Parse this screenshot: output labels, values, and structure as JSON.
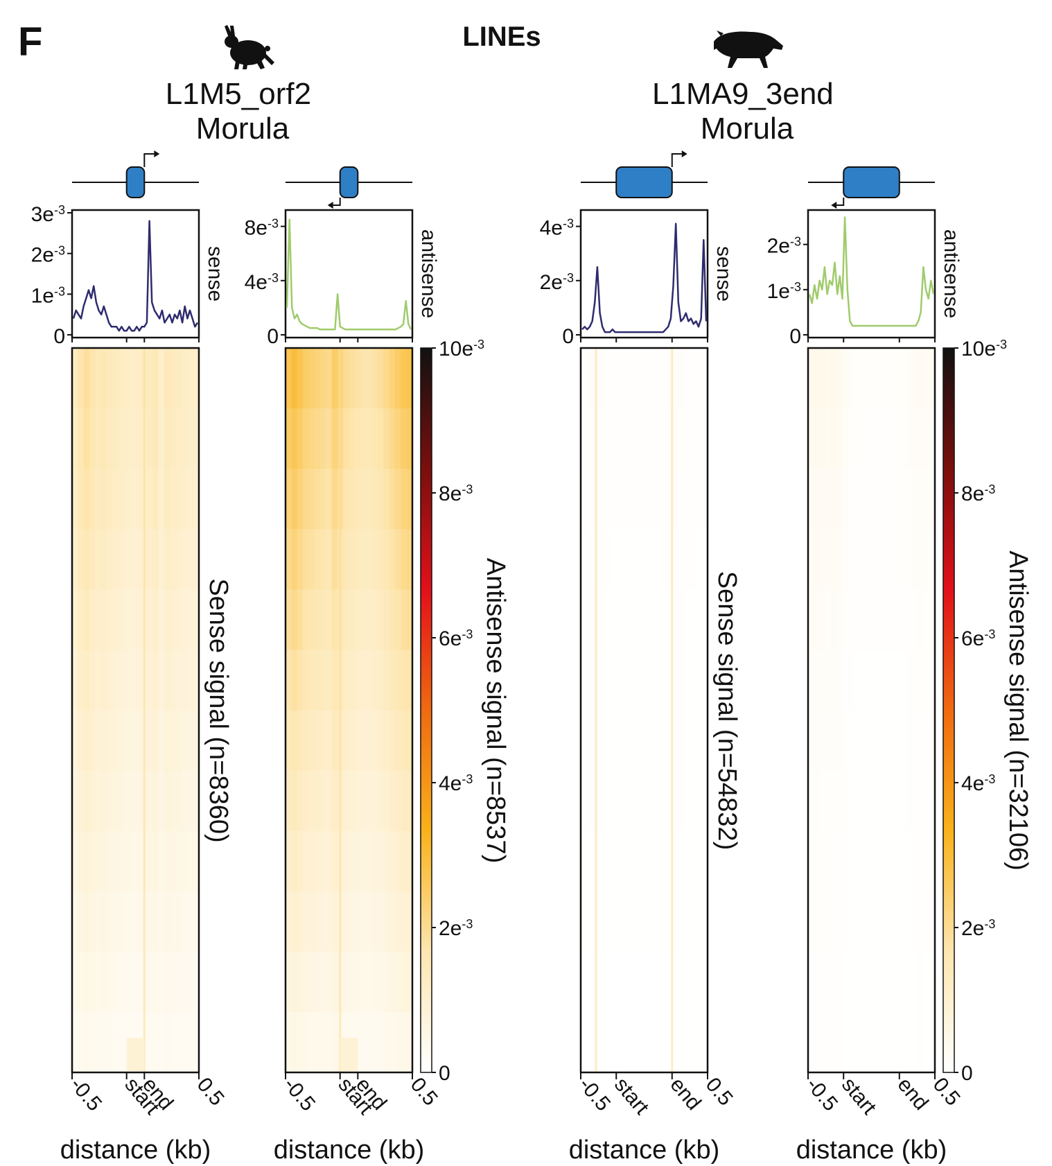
{
  "figure": {
    "panel_letter": "F",
    "class_title": "LINEs"
  },
  "colors": {
    "sense_line": "#2e2b6e",
    "antisense_line": "#9fcb6b",
    "te_box": "#2f7fc6",
    "axis": "#111111"
  },
  "colormap_stops": [
    "#ffffff",
    "#fde6b0",
    "#f9b21a",
    "#f06a10",
    "#e2101a",
    "#7a0f0c",
    "#111111"
  ],
  "icons": [
    "rabbit-icon",
    "pig-icon"
  ],
  "chart_data": [
    {
      "type": "line",
      "group": "L1M5_orf2 Morula",
      "group_title_lines": [
        "L1M5_orf2",
        "Morula"
      ],
      "strand": "sense",
      "strand_label": "sense",
      "n_label": "Sense signal (n=8360)",
      "ylim": [
        0,
        0.003
      ],
      "yticks": [
        0,
        0.001,
        0.002,
        0.003
      ],
      "ytick_labels": [
        {
          "m": "0",
          "e": ""
        },
        {
          "m": "1e",
          "e": "-3"
        },
        {
          "m": "2e",
          "e": "-3"
        },
        {
          "m": "3e",
          "e": "-3"
        }
      ],
      "x_region": [
        "-0.5",
        "start",
        "end",
        "0.5"
      ],
      "x_positions": [
        0,
        0.43,
        0.57,
        1
      ],
      "xlabel": "distance (kb)",
      "te_span": [
        0.43,
        0.57
      ],
      "tss_side": "end",
      "profile": [
        0.0004,
        0.0006,
        0.0005,
        0.0004,
        0.0007,
        0.0009,
        0.0011,
        0.0009,
        0.0012,
        0.0008,
        0.0006,
        0.0005,
        0.0007,
        0.0005,
        0.0003,
        0.0002,
        0.0002,
        0.0002,
        0.0001,
        0.0002,
        0.0001,
        0.0001,
        0.0002,
        0.0001,
        0.0001,
        0.0002,
        0.0001,
        0.0002,
        0.0002,
        0.0003,
        0.0028,
        0.0008,
        0.0006,
        0.0005,
        0.0004,
        0.0006,
        0.0003,
        0.0004,
        0.0005,
        0.0003,
        0.0005,
        0.0004,
        0.0006,
        0.0003,
        0.0007,
        0.0004,
        0.0006,
        0.0004,
        0.0002,
        0.0003
      ],
      "heatmap_rows": [
        0.42,
        0.4,
        0.38,
        0.34,
        0.3,
        0.27,
        0.24,
        0.21,
        0.18,
        0.15,
        0.12,
        0.09
      ],
      "heatmap_profile": [
        0.35,
        0.45,
        0.5,
        0.45,
        0.4,
        0.42,
        0.38,
        0.36,
        0.34,
        0.32,
        0.3,
        0.32,
        0.34,
        0.36,
        0.4,
        0.3,
        0.38,
        0.36,
        0.34,
        0.32,
        0.3,
        0.3
      ],
      "heatmap_stripes": [
        0.57
      ],
      "heatmap_tail_block": [
        0.43,
        0.57
      ],
      "colorbar": false
    },
    {
      "type": "line",
      "group": "L1M5_orf2 Morula",
      "strand": "antisense",
      "strand_label": "antisense",
      "n_label": "Antisense signal (n=8537)",
      "ylim": [
        0,
        0.009
      ],
      "yticks": [
        0,
        0.004,
        0.008
      ],
      "ytick_labels": [
        {
          "m": "0",
          "e": ""
        },
        {
          "m": "4e",
          "e": "-3"
        },
        {
          "m": "8e",
          "e": "-3"
        }
      ],
      "x_region": [
        "-0.5",
        "start",
        "end",
        "0.5"
      ],
      "x_positions": [
        0,
        0.43,
        0.57,
        1
      ],
      "xlabel": "distance (kb)",
      "te_span": [
        0.43,
        0.57
      ],
      "tss_side": "start",
      "profile": [
        0.002,
        0.0085,
        0.002,
        0.0012,
        0.0015,
        0.001,
        0.0008,
        0.0007,
        0.0006,
        0.0005,
        0.0005,
        0.0005,
        0.0005,
        0.0004,
        0.0004,
        0.0004,
        0.0004,
        0.0004,
        0.0004,
        0.0004,
        0.003,
        0.0006,
        0.0005,
        0.0004,
        0.0004,
        0.0004,
        0.0004,
        0.0004,
        0.0004,
        0.0004,
        0.0004,
        0.0004,
        0.0004,
        0.0004,
        0.0004,
        0.0004,
        0.0004,
        0.0004,
        0.0004,
        0.0004,
        0.0004,
        0.0004,
        0.0004,
        0.0004,
        0.0005,
        0.0006,
        0.0008,
        0.0025,
        0.0008,
        0.0004
      ],
      "heatmap_rows": [
        0.55,
        0.5,
        0.46,
        0.42,
        0.38,
        0.34,
        0.3,
        0.26,
        0.22,
        0.18,
        0.14,
        0.1
      ],
      "heatmap_profile": [
        0.55,
        0.6,
        0.55,
        0.5,
        0.48,
        0.46,
        0.44,
        0.42,
        0.5,
        0.46,
        0.4,
        0.38,
        0.36,
        0.34,
        0.34,
        0.36,
        0.38,
        0.42,
        0.46,
        0.5,
        0.54,
        0.56
      ],
      "heatmap_stripes": [
        0.43
      ],
      "heatmap_tail_block": [
        0.43,
        0.57
      ],
      "colorbar": true,
      "colorbar_ticks": [
        {
          "m": "0",
          "e": ""
        },
        {
          "m": "2e",
          "e": "-3"
        },
        {
          "m": "4e",
          "e": "-3"
        },
        {
          "m": "6e",
          "e": "-3"
        },
        {
          "m": "8e",
          "e": "-3"
        },
        {
          "m": "10e",
          "e": "-3"
        }
      ],
      "colorbar_range": [
        0,
        0.01
      ]
    },
    {
      "type": "line",
      "group": "L1MA9_3end Morula",
      "group_title_lines": [
        "L1MA9_3end",
        "Morula"
      ],
      "strand": "sense",
      "strand_label": "sense",
      "n_label": "Sense signal (n=54832)",
      "ylim": [
        0,
        0.0045
      ],
      "yticks": [
        0,
        0.002,
        0.004
      ],
      "ytick_labels": [
        {
          "m": "0",
          "e": ""
        },
        {
          "m": "2e",
          "e": "-3"
        },
        {
          "m": "4e",
          "e": "-3"
        }
      ],
      "x_region": [
        "-0.5",
        "start",
        "end",
        "0.5"
      ],
      "x_positions": [
        0,
        0.28,
        0.72,
        1
      ],
      "xlabel": "distance (kb)",
      "te_span": [
        0.28,
        0.72
      ],
      "tss_side": "end",
      "profile": [
        0.0002,
        0.0003,
        0.0002,
        0.0003,
        0.0005,
        0.0012,
        0.0025,
        0.0008,
        0.0003,
        0.0001,
        0.0001,
        0.0001,
        0.0002,
        0.0001,
        0.0001,
        0.0001,
        0.0001,
        0.0001,
        0.0001,
        0.0001,
        0.0001,
        0.0001,
        0.0001,
        0.0001,
        0.0001,
        0.0001,
        0.0001,
        0.0001,
        0.0001,
        0.0001,
        0.0001,
        0.0001,
        0.0001,
        0.0002,
        0.0003,
        0.0006,
        0.0018,
        0.0041,
        0.0012,
        0.0005,
        0.0006,
        0.0008,
        0.0005,
        0.0006,
        0.0004,
        0.0005,
        0.0003,
        0.0006,
        0.0035,
        0.0005
      ],
      "heatmap_rows": [
        0.12,
        0.1,
        0.08,
        0.07,
        0.06,
        0.05,
        0.04,
        0.04,
        0.03,
        0.03,
        0.02,
        0.02
      ],
      "heatmap_profile": [
        0.05,
        0.1,
        0.14,
        0.1,
        0.06,
        0.05,
        0.05,
        0.05,
        0.05,
        0.05,
        0.05,
        0.05,
        0.05,
        0.05,
        0.06,
        0.1,
        0.14,
        0.1,
        0.06,
        0.06,
        0.05,
        0.05
      ],
      "heatmap_stripes": [
        0.12,
        0.72
      ],
      "heatmap_tail_block": null,
      "colorbar": false
    },
    {
      "type": "line",
      "group": "L1MA9_3end Morula",
      "strand": "antisense",
      "strand_label": "antisense",
      "n_label": "Antisense signal (n=32106)",
      "ylim": [
        0,
        0.0027
      ],
      "yticks": [
        0,
        0.001,
        0.002
      ],
      "ytick_labels": [
        {
          "m": "0",
          "e": ""
        },
        {
          "m": "1e",
          "e": "-3"
        },
        {
          "m": "2e",
          "e": "-3"
        }
      ],
      "x_region": [
        "-0.5",
        "start",
        "end",
        "0.5"
      ],
      "x_positions": [
        0,
        0.28,
        0.72,
        1
      ],
      "xlabel": "distance (kb)",
      "te_span": [
        0.28,
        0.72
      ],
      "tss_side": "start",
      "profile": [
        0.0009,
        0.0007,
        0.0011,
        0.0008,
        0.0012,
        0.001,
        0.0015,
        0.0009,
        0.0012,
        0.0011,
        0.0016,
        0.0009,
        0.0013,
        0.0008,
        0.0026,
        0.001,
        0.0003,
        0.0002,
        0.0002,
        0.0002,
        0.0002,
        0.0002,
        0.0002,
        0.0002,
        0.0002,
        0.0002,
        0.0002,
        0.0002,
        0.0002,
        0.0002,
        0.0002,
        0.0002,
        0.0002,
        0.0002,
        0.0002,
        0.0002,
        0.0002,
        0.0002,
        0.0002,
        0.0002,
        0.0002,
        0.0002,
        0.0002,
        0.0003,
        0.0005,
        0.0015,
        0.001,
        0.0008,
        0.0012,
        0.0009
      ],
      "heatmap_rows": [
        0.2,
        0.16,
        0.13,
        0.11,
        0.09,
        0.07,
        0.06,
        0.05,
        0.04,
        0.04,
        0.03,
        0.03
      ],
      "heatmap_profile": [
        0.22,
        0.24,
        0.22,
        0.2,
        0.22,
        0.2,
        0.1,
        0.06,
        0.05,
        0.05,
        0.05,
        0.05,
        0.05,
        0.05,
        0.05,
        0.05,
        0.05,
        0.08,
        0.12,
        0.14,
        0.12,
        0.1
      ],
      "heatmap_stripes": [],
      "heatmap_tail_block": null,
      "colorbar": true,
      "colorbar_ticks": [
        {
          "m": "0",
          "e": ""
        },
        {
          "m": "2e",
          "e": "-3"
        },
        {
          "m": "4e",
          "e": "-3"
        },
        {
          "m": "6e",
          "e": "-3"
        },
        {
          "m": "8e",
          "e": "-3"
        },
        {
          "m": "10e",
          "e": "-3"
        }
      ],
      "colorbar_range": [
        0,
        0.01
      ]
    }
  ]
}
